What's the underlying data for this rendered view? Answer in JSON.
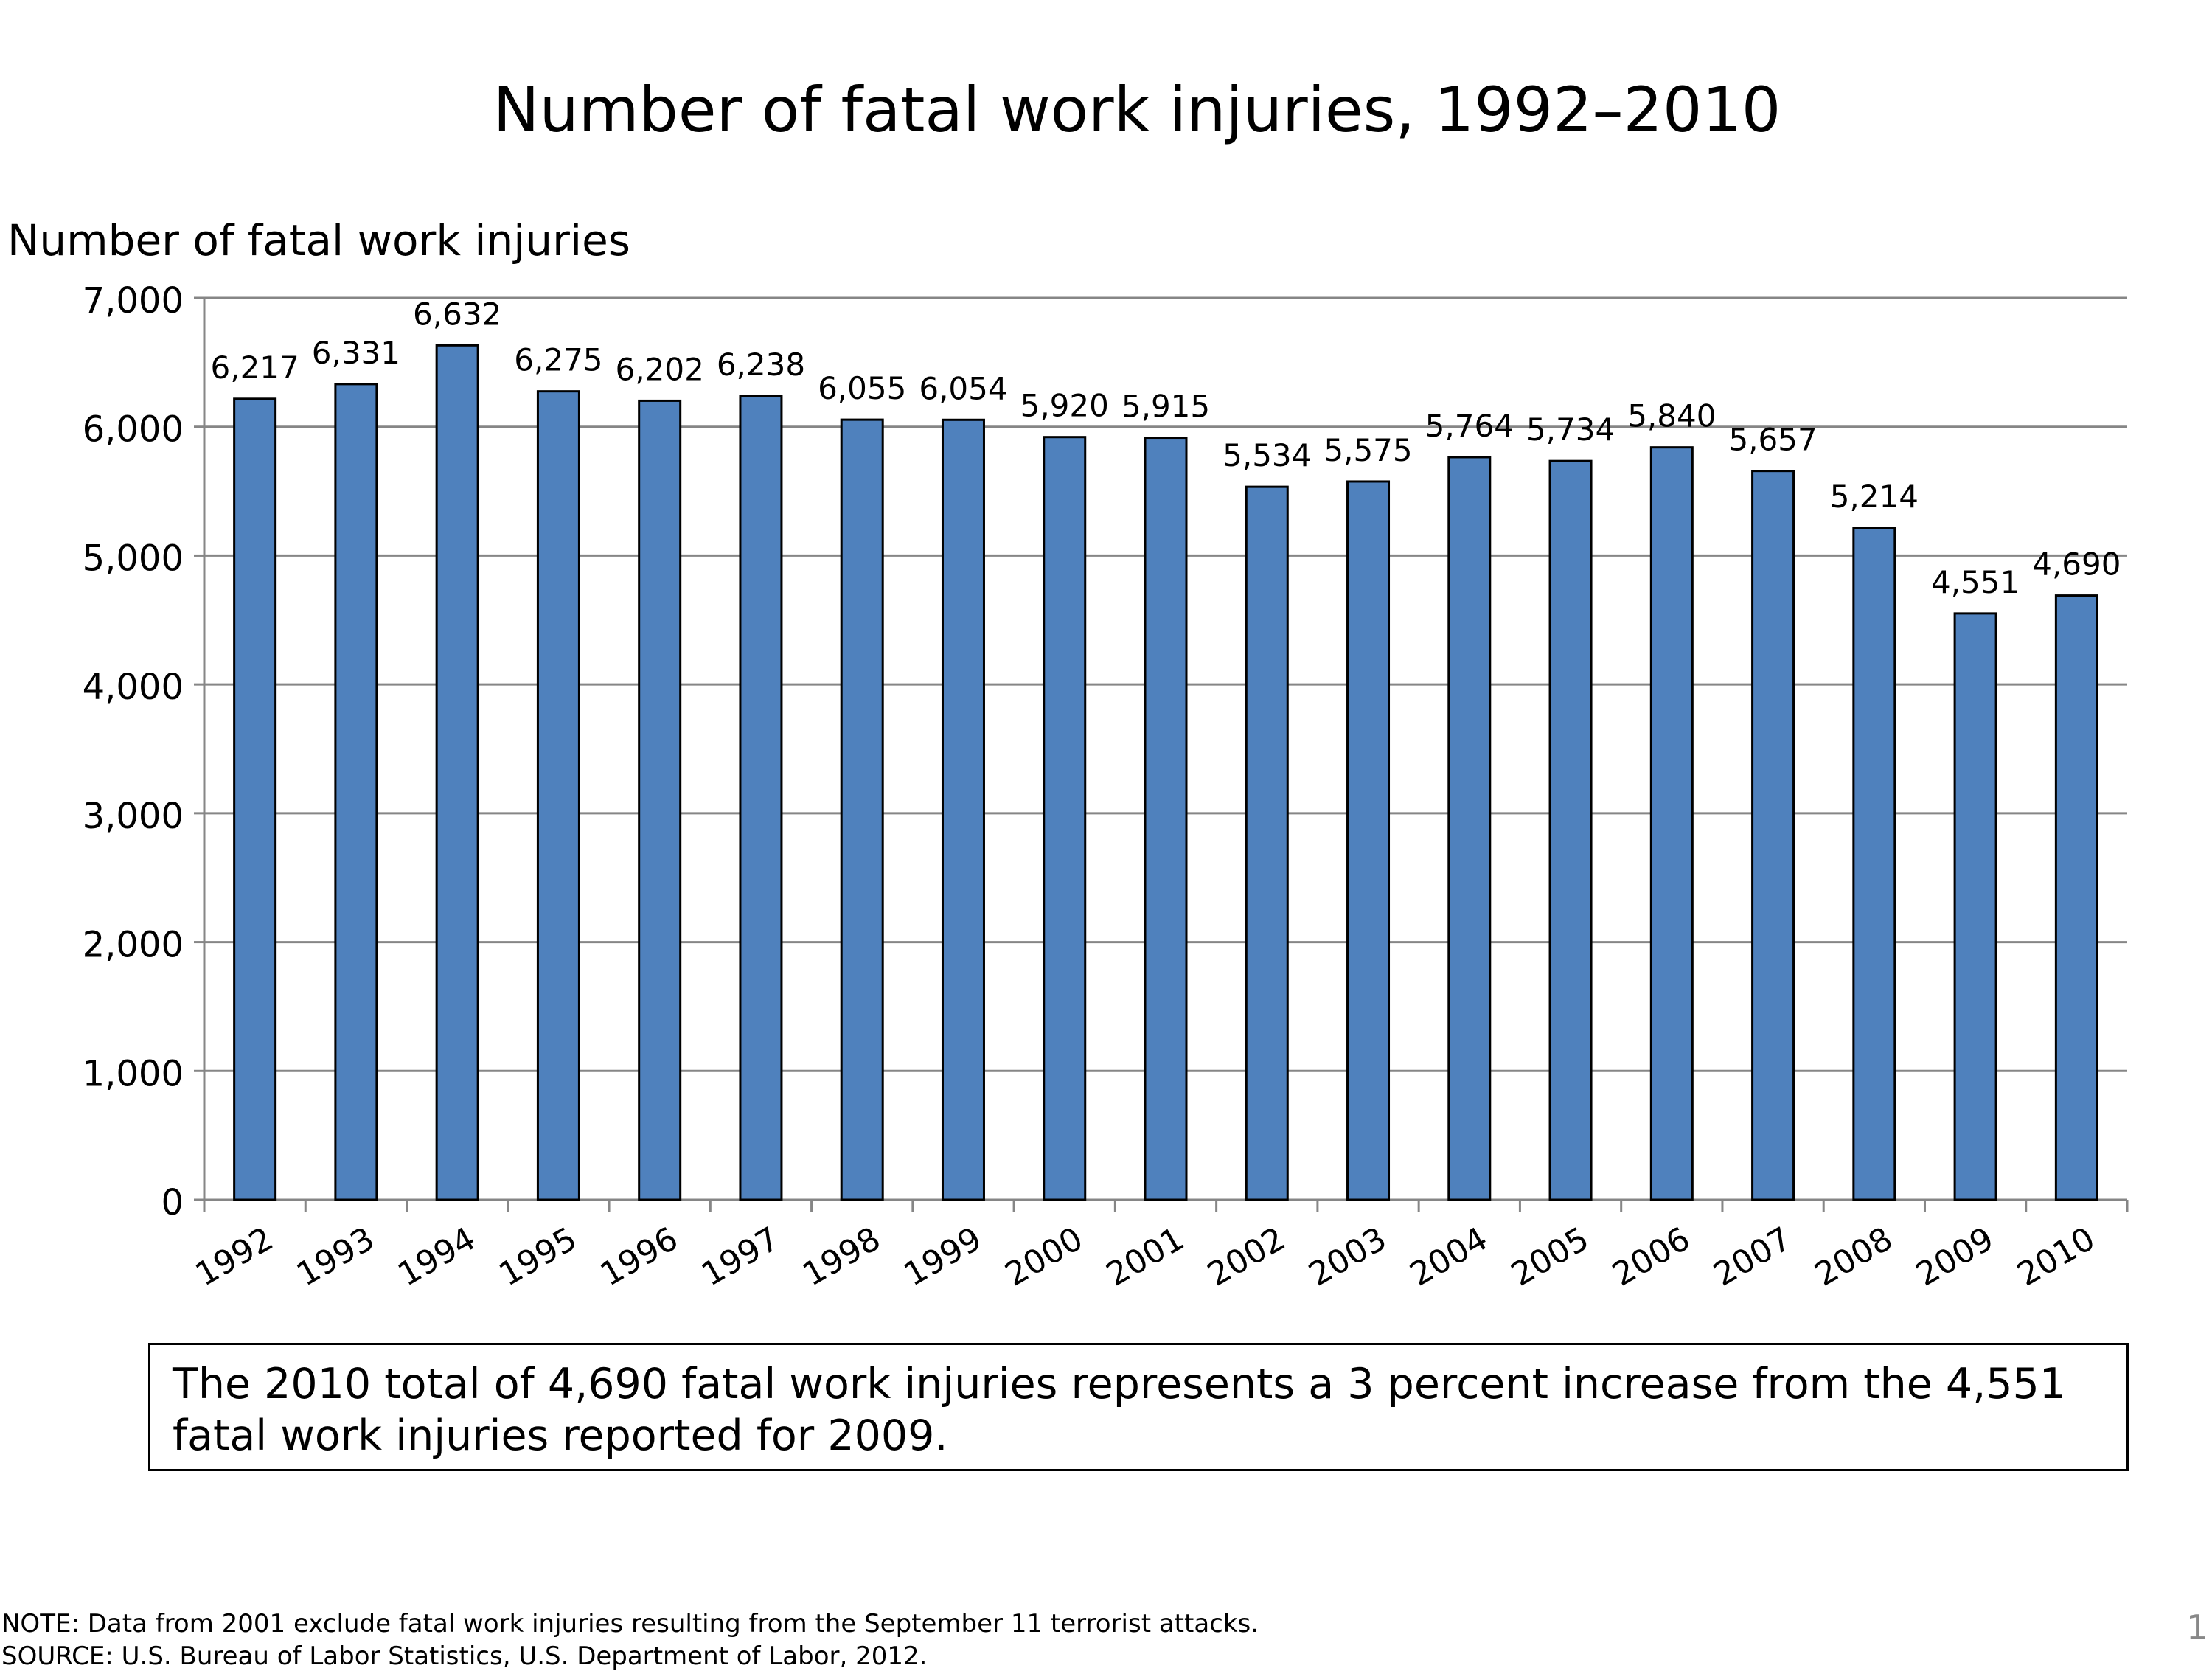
{
  "chart_data": {
    "type": "bar",
    "title": "Number of fatal work injuries, 1992–2010",
    "xlabel": "",
    "ylabel": "Number of fatal work injuries",
    "ylim": [
      0,
      7000
    ],
    "yticks": [
      0,
      1000,
      2000,
      3000,
      4000,
      5000,
      6000,
      7000
    ],
    "ytick_labels": [
      "0",
      "1,000",
      "2,000",
      "3,000",
      "4,000",
      "5,000",
      "6,000",
      "7,000"
    ],
    "grid": true,
    "categories": [
      "1992",
      "1993",
      "1994",
      "1995",
      "1996",
      "1997",
      "1998",
      "1999",
      "2000",
      "2001",
      "2002",
      "2003",
      "2004",
      "2005",
      "2006",
      "2007",
      "2008",
      "2009",
      "2010"
    ],
    "values": [
      6217,
      6331,
      6632,
      6275,
      6202,
      6238,
      6055,
      6054,
      5920,
      5915,
      5534,
      5575,
      5764,
      5734,
      5840,
      5657,
      5214,
      4551,
      4690
    ],
    "data_labels": [
      "6,217",
      "6,331",
      "6,632",
      "6,275",
      "6,202",
      "6,238",
      "6,055",
      "6,054",
      "5,920",
      "5,915",
      "5,534",
      "5,575",
      "5,764",
      "5,734",
      "5,840",
      "5,657",
      "5,214",
      "4,551",
      "4,690"
    ],
    "bar_color": "#4F81BD"
  },
  "callout": "The 2010 total of 4,690 fatal work injuries represents a 3 percent increase from the 4,551 fatal work injuries reported for 2009.",
  "notes": {
    "note": "NOTE: Data from 2001 exclude fatal work injuries resulting from the September 11 terrorist attacks.",
    "source": "SOURCE: U.S. Bureau of Labor Statistics, U.S. Department of Labor, 2012."
  },
  "page_number": "1"
}
